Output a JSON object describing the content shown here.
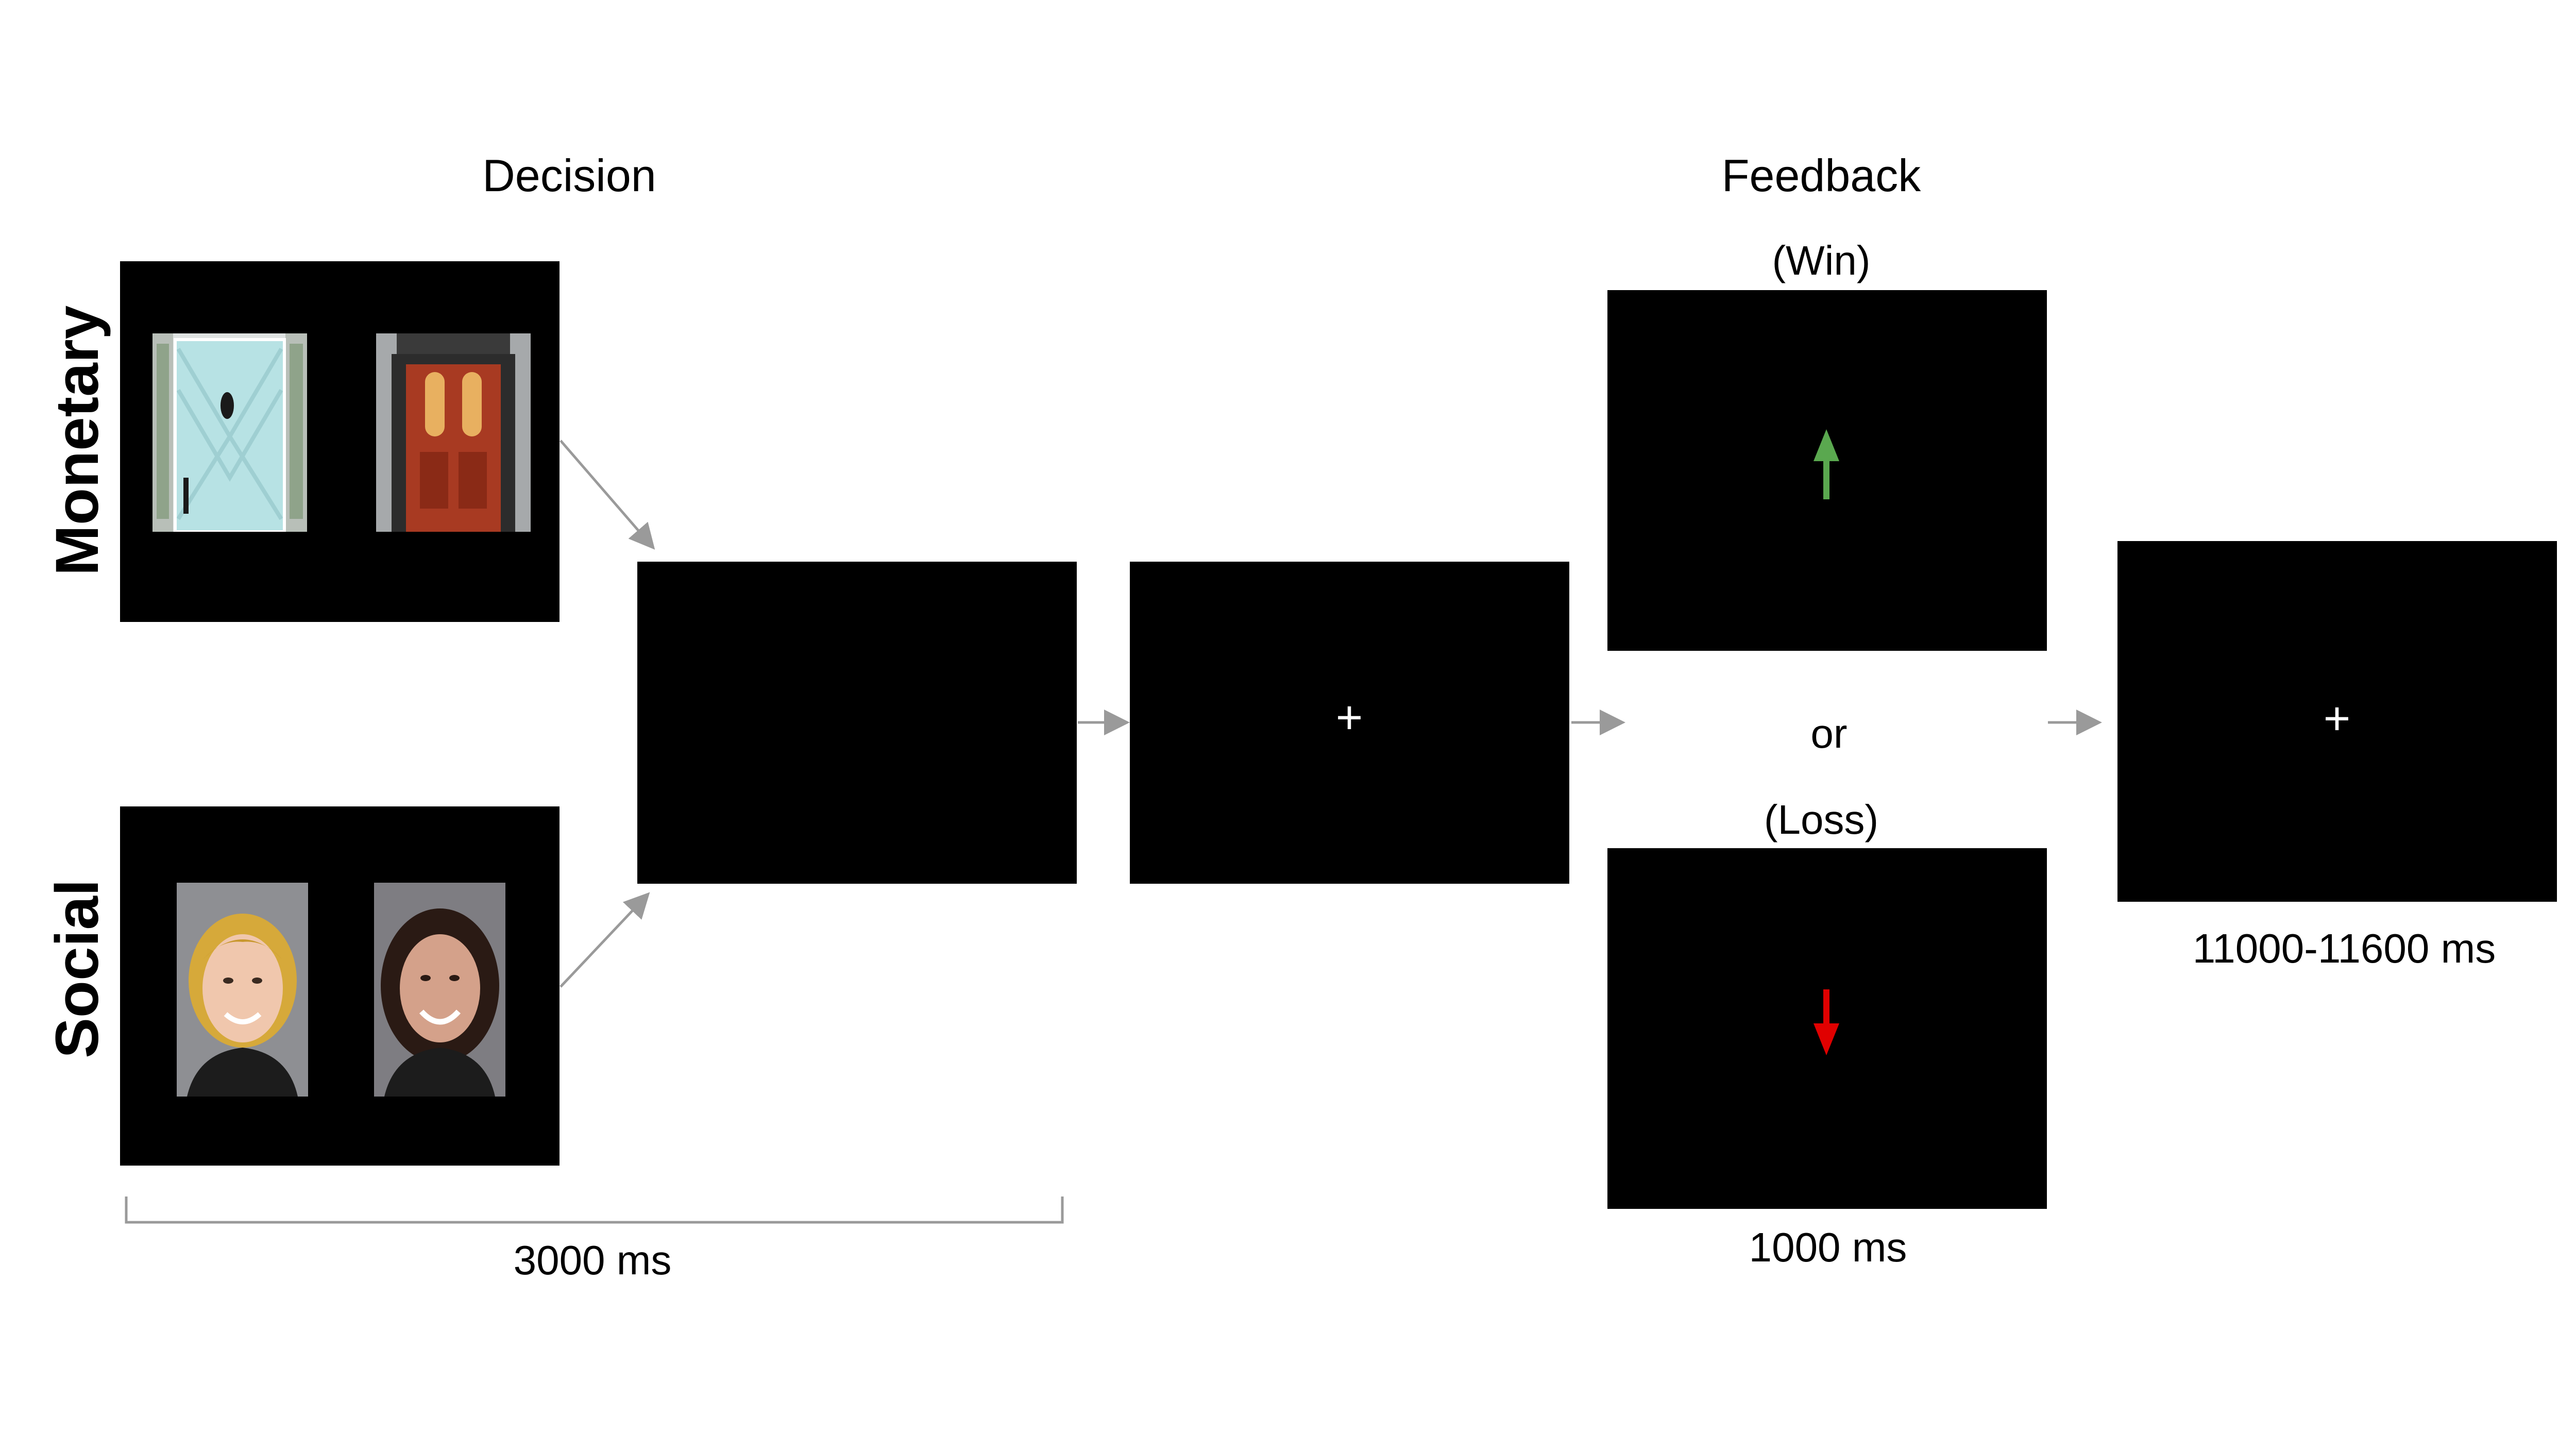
{
  "headings": {
    "decision": "Decision",
    "feedback": "Feedback"
  },
  "rows": {
    "monetary": "Monetary",
    "social": "Social"
  },
  "feedback": {
    "win": "(Win)",
    "or": "or",
    "loss": "(Loss)"
  },
  "durations": {
    "decision": "3000 ms",
    "feedback": "1000 ms",
    "iti": "11000-11600 ms"
  },
  "screens": {
    "fixation_symbol": "+"
  },
  "colors": {
    "screen": "#000000",
    "win_arrow": "#5aa84f",
    "loss_arrow": "#e00000",
    "connector": "#9a9a9a",
    "fixation": "#ffffff"
  },
  "icons": [
    "blue-door-icon",
    "red-door-icon",
    "face-left-icon",
    "face-right-icon",
    "up-arrow-icon",
    "down-arrow-icon",
    "fixation-cross-icon"
  ]
}
